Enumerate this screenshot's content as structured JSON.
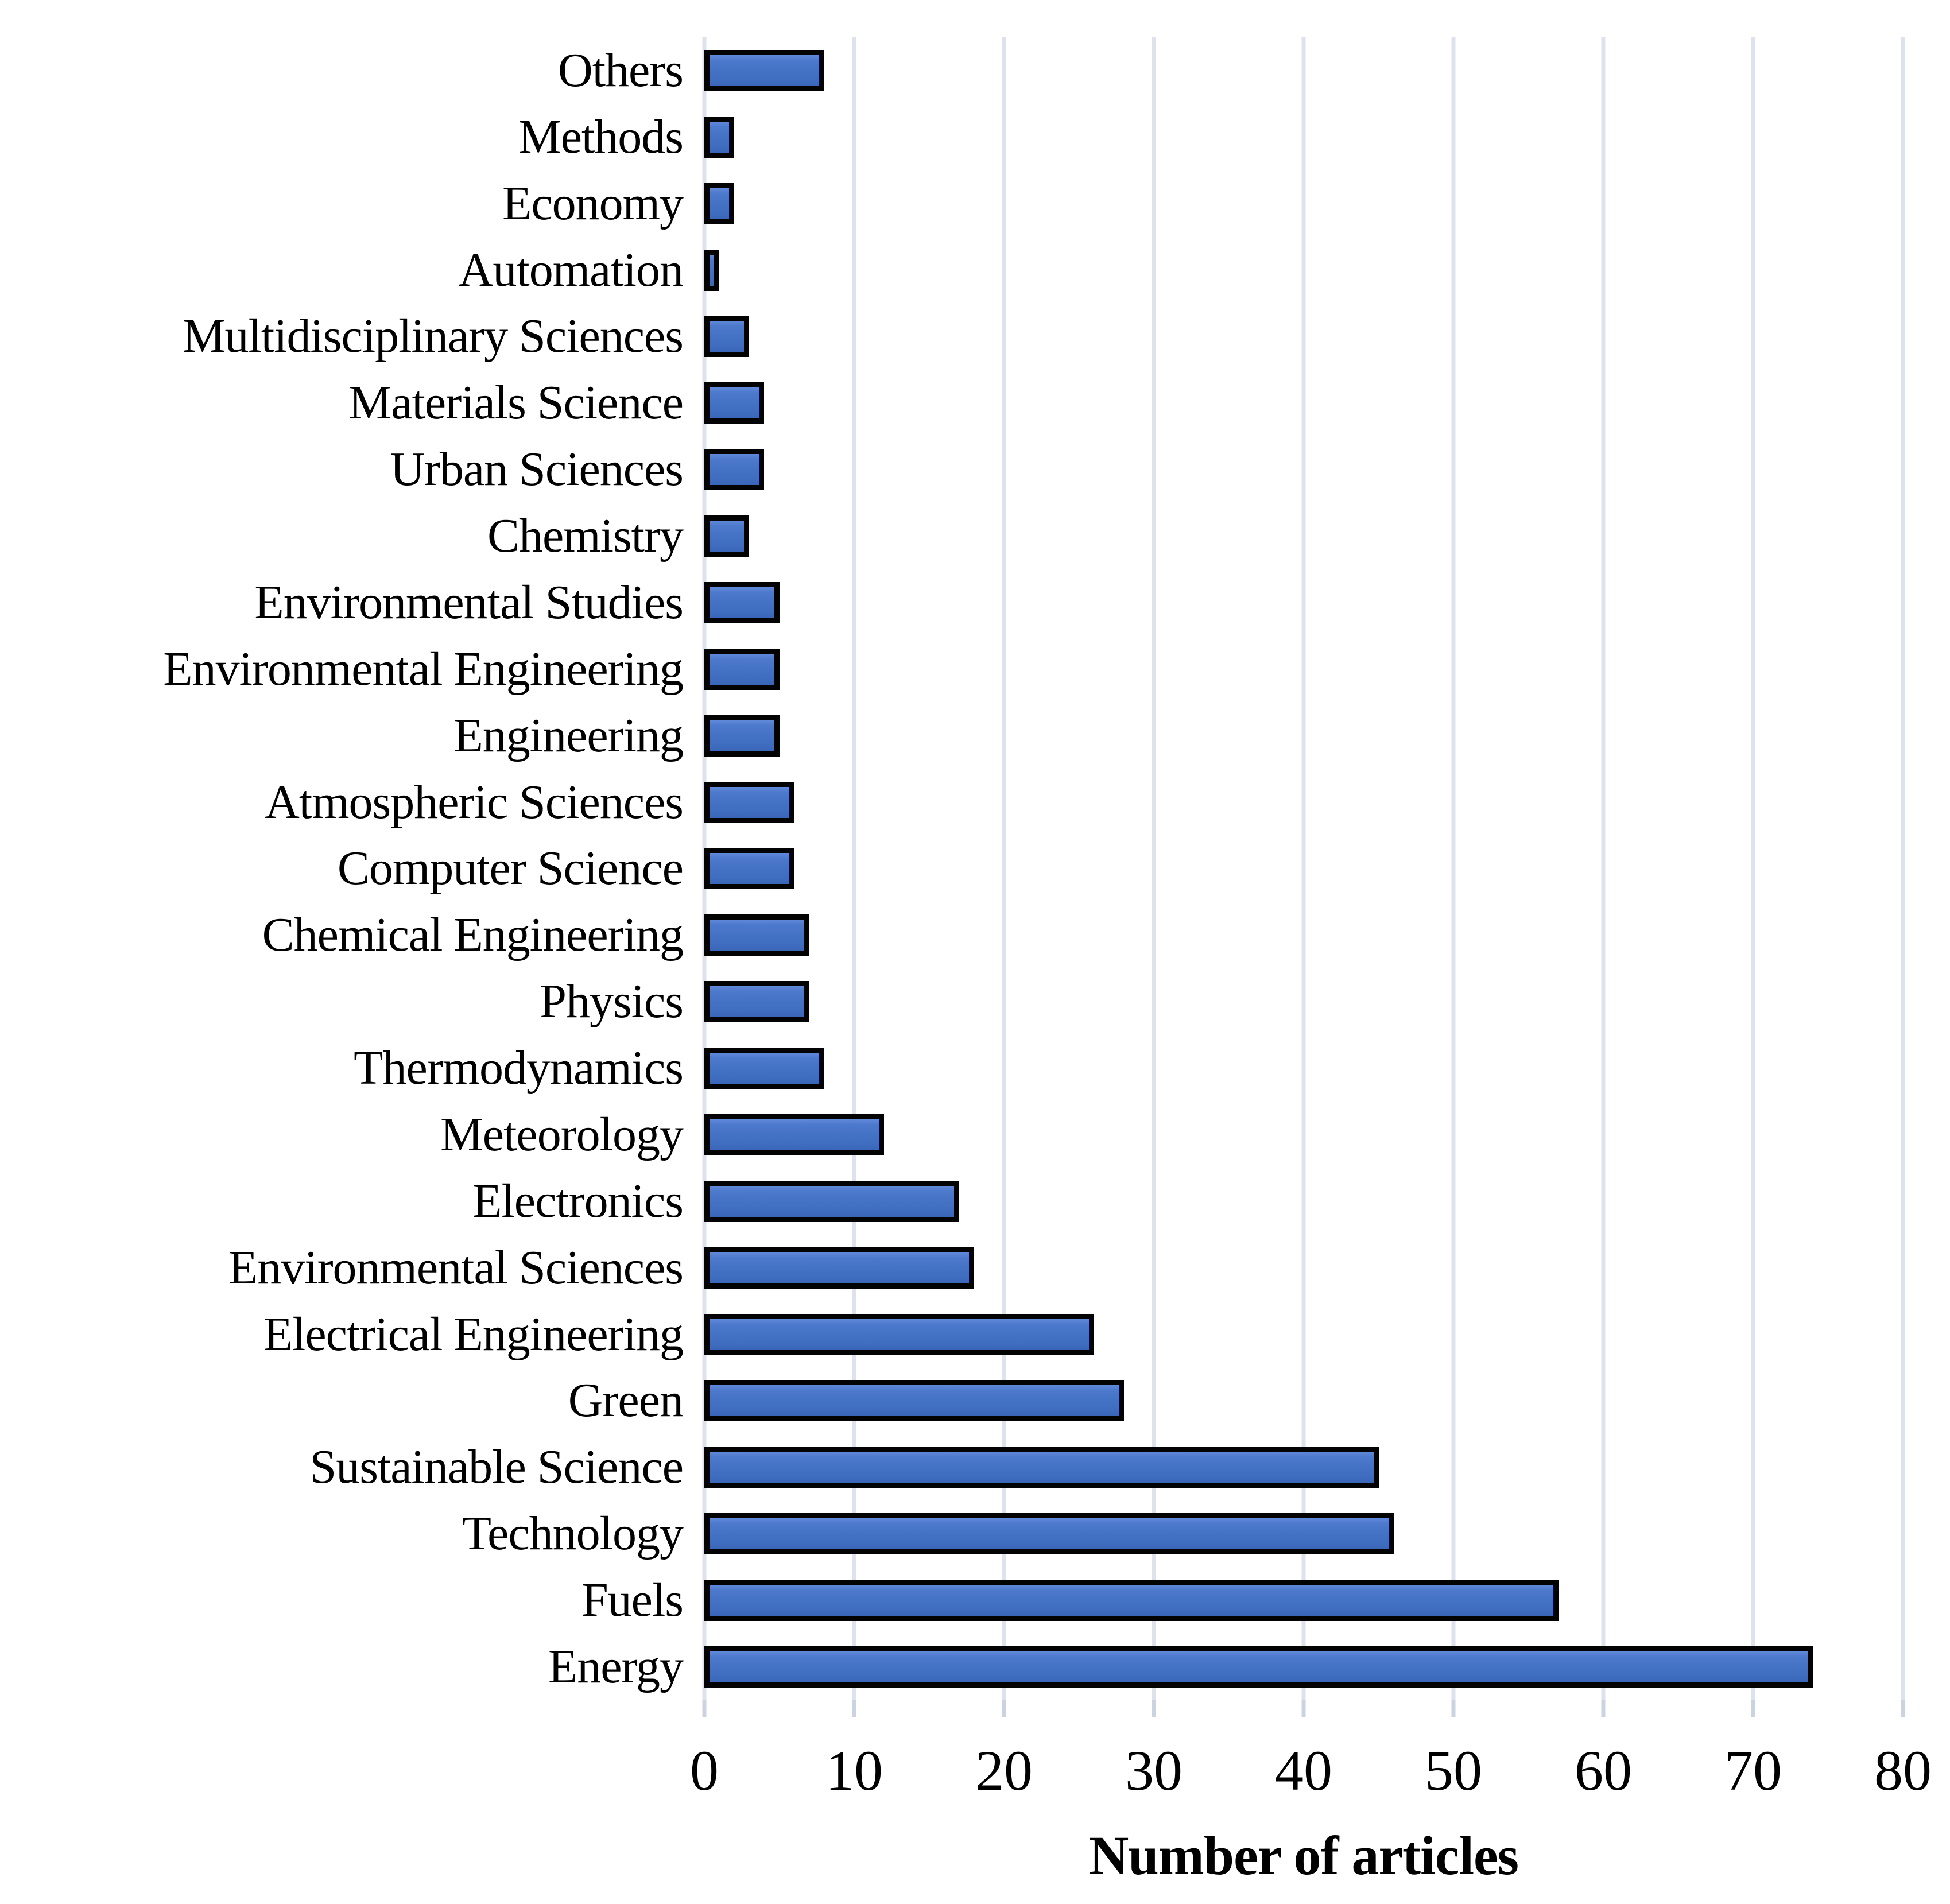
{
  "chart_data": {
    "type": "bar",
    "orientation": "horizontal",
    "title": "",
    "xlabel": "Number of articles",
    "ylabel": "",
    "xlim": [
      0,
      80
    ],
    "xticks": [
      0,
      10,
      20,
      30,
      40,
      50,
      60,
      70,
      80
    ],
    "grid": "vertical-gridlines-on",
    "legend": "none",
    "categories": [
      "Others",
      "Methods",
      "Economy",
      "Automation",
      "Multidisciplinary Sciences",
      "Materials Science",
      "Urban Sciences",
      "Chemistry",
      "Environmental Studies",
      "Environmental Engineering",
      "Engineering",
      "Atmospheric Sciences",
      "Computer Science",
      "Chemical Engineering",
      "Physics",
      "Thermodynamics",
      "Meteorology",
      "Electronics",
      "Environmental Sciences",
      "Electrical Engineering",
      "Green",
      "Sustainable Science",
      "Technology",
      "Fuels",
      "Energy"
    ],
    "values": [
      8,
      2,
      2,
      1,
      3,
      4,
      4,
      3,
      5,
      5,
      5,
      6,
      6,
      7,
      7,
      8,
      12,
      17,
      18,
      26,
      28,
      45,
      46,
      57,
      74
    ],
    "colors": {
      "bar_fill": "#4472c4",
      "bar_border": "#030303",
      "gridline": "#dde2ec",
      "tick_mark": "#ccd3e0",
      "text": "#000000",
      "background": "#ffffff"
    }
  }
}
